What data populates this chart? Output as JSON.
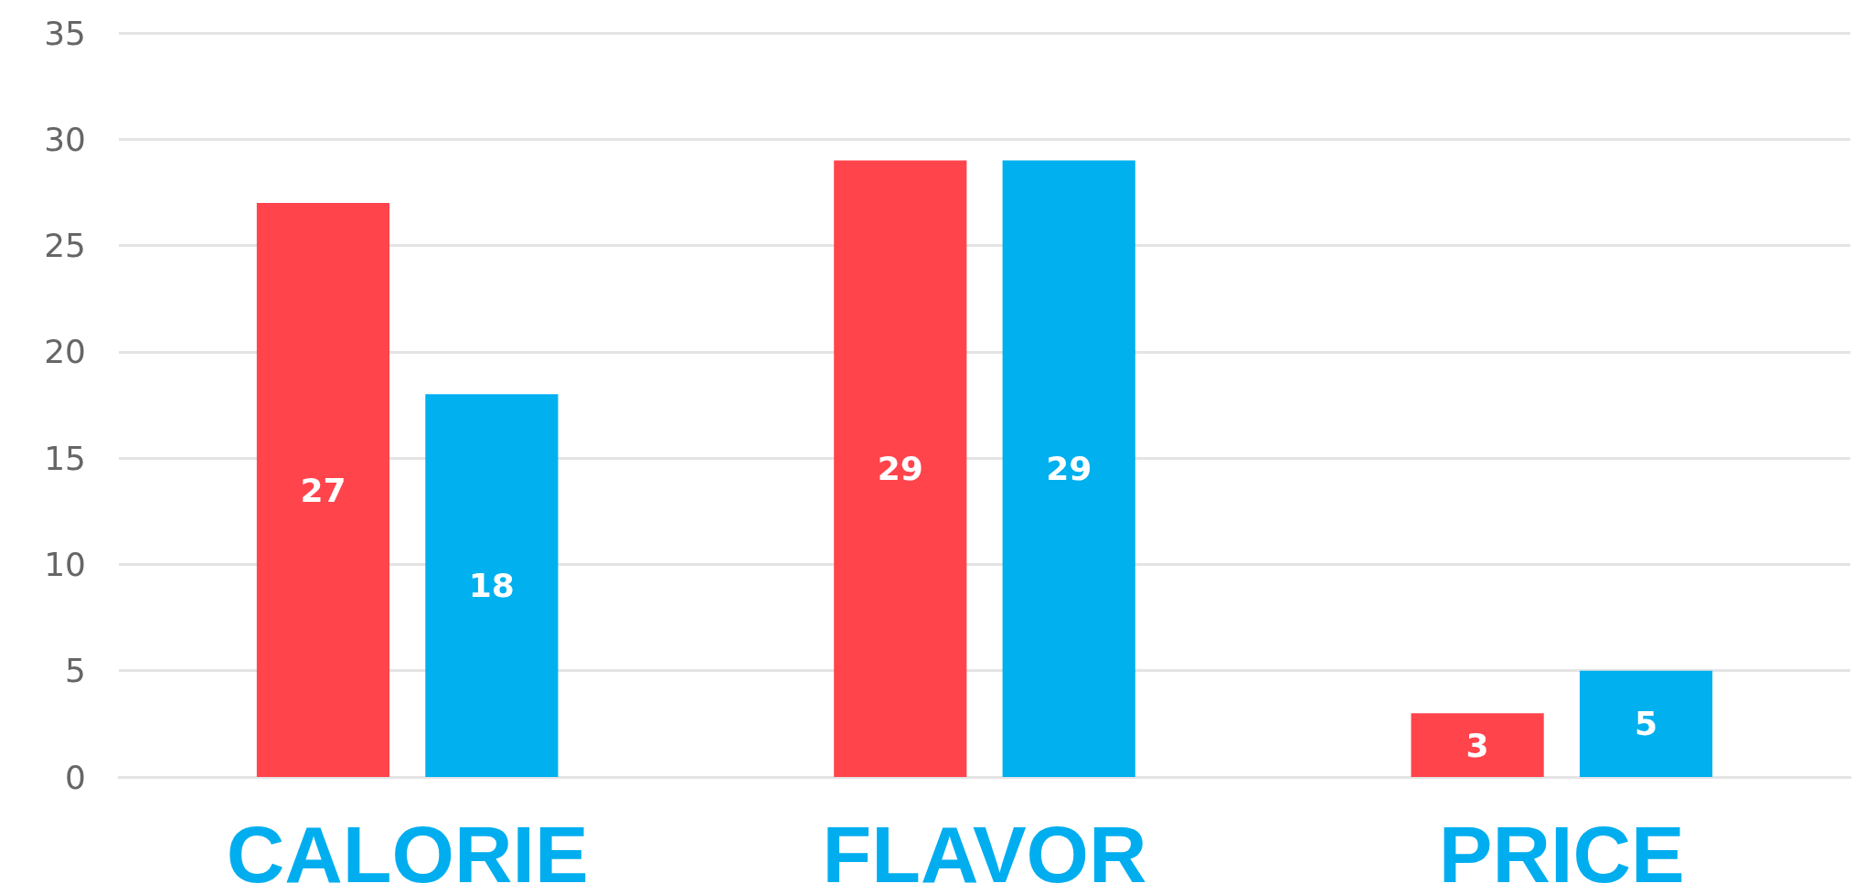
{
  "chart_data": {
    "type": "bar",
    "categories": [
      "CALORIE",
      "FLAVOR",
      "PRICE"
    ],
    "series": [
      {
        "color": "#ff444c",
        "values": [
          27,
          29,
          3
        ]
      },
      {
        "color": "#00b0ef",
        "values": [
          18,
          29,
          5
        ]
      }
    ],
    "ylim": [
      0,
      35
    ],
    "yticks": [
      0,
      5,
      10,
      15,
      20,
      25,
      30,
      35
    ],
    "grid": "y",
    "data_labels": true
  }
}
